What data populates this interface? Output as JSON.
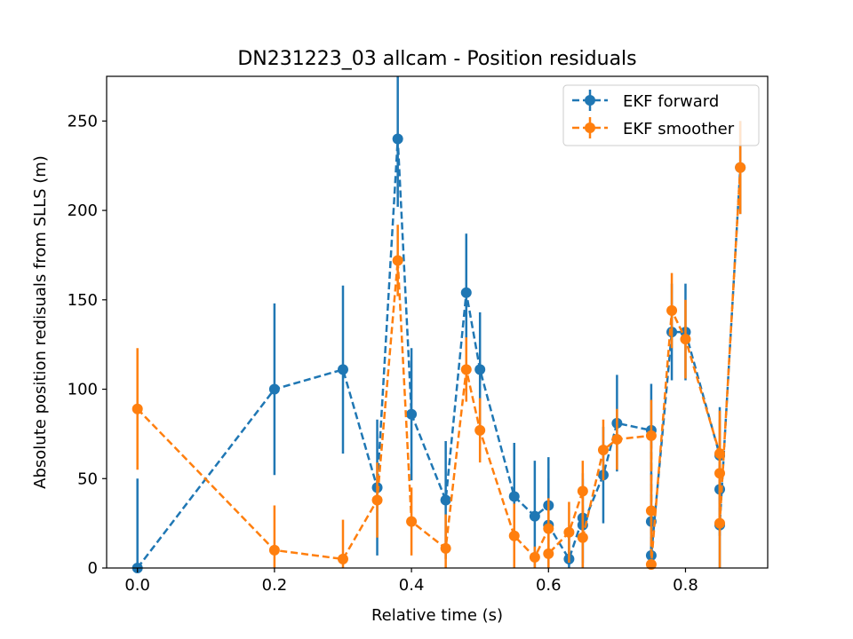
{
  "chart_data": {
    "type": "scatter",
    "title": "DN231223_03 allcam - Position residuals",
    "xlabel": "Relative time (s)",
    "ylabel": "Absolute position redisuals from SLLS (m)",
    "xlim": [
      -0.045,
      0.92
    ],
    "ylim": [
      0,
      275
    ],
    "xticks": [
      0.0,
      0.2,
      0.4,
      0.6,
      0.8
    ],
    "xtick_labels": [
      "0.0",
      "0.2",
      "0.4",
      "0.6",
      "0.8"
    ],
    "yticks": [
      0,
      50,
      100,
      150,
      200,
      250
    ],
    "ytick_labels": [
      "0",
      "50",
      "100",
      "150",
      "200",
      "250"
    ],
    "grid": false,
    "legend_position": "upper right",
    "style": "dashed line with circle markers and vertical error bars",
    "series": [
      {
        "name": "EKF forward",
        "color": "#1f77b4",
        "points": [
          {
            "x": 0.0,
            "y": 0,
            "err": 50
          },
          {
            "x": 0.2,
            "y": 100,
            "err": 48
          },
          {
            "x": 0.3,
            "y": 111,
            "err": 47
          },
          {
            "x": 0.35,
            "y": 45,
            "err": 38
          },
          {
            "x": 0.38,
            "y": 240,
            "err": 38
          },
          {
            "x": 0.4,
            "y": 86,
            "err": 37
          },
          {
            "x": 0.45,
            "y": 38,
            "err": 33
          },
          {
            "x": 0.48,
            "y": 154,
            "err": 33
          },
          {
            "x": 0.5,
            "y": 111,
            "err": 32
          },
          {
            "x": 0.55,
            "y": 40,
            "err": 30
          },
          {
            "x": 0.58,
            "y": 29,
            "err": 31
          },
          {
            "x": 0.6,
            "y": 35,
            "err": 27
          },
          {
            "x": 0.6,
            "y": 24,
            "err": 26
          },
          {
            "x": 0.63,
            "y": 5,
            "err": 16
          },
          {
            "x": 0.65,
            "y": 28,
            "err": 25
          },
          {
            "x": 0.65,
            "y": 24,
            "err": 26
          },
          {
            "x": 0.68,
            "y": 52,
            "err": 27
          },
          {
            "x": 0.7,
            "y": 81,
            "err": 27
          },
          {
            "x": 0.75,
            "y": 77,
            "err": 26
          },
          {
            "x": 0.75,
            "y": 26,
            "err": 26
          },
          {
            "x": 0.75,
            "y": 7,
            "err": 7
          },
          {
            "x": 0.78,
            "y": 132,
            "err": 27
          },
          {
            "x": 0.8,
            "y": 132,
            "err": 27
          },
          {
            "x": 0.85,
            "y": 63,
            "err": 27
          },
          {
            "x": 0.85,
            "y": 44,
            "err": 26
          },
          {
            "x": 0.85,
            "y": 24,
            "err": 24
          },
          {
            "x": 0.88,
            "y": 224,
            "err": 26
          }
        ]
      },
      {
        "name": "EKF smoother",
        "color": "#ff7f0e",
        "points": [
          {
            "x": 0.0,
            "y": 89,
            "err": 34
          },
          {
            "x": 0.2,
            "y": 10,
            "err": 25
          },
          {
            "x": 0.3,
            "y": 5,
            "err": 22
          },
          {
            "x": 0.35,
            "y": 38,
            "err": 21
          },
          {
            "x": 0.38,
            "y": 172,
            "err": 20
          },
          {
            "x": 0.4,
            "y": 26,
            "err": 19
          },
          {
            "x": 0.45,
            "y": 11,
            "err": 19
          },
          {
            "x": 0.48,
            "y": 111,
            "err": 18
          },
          {
            "x": 0.5,
            "y": 77,
            "err": 18
          },
          {
            "x": 0.55,
            "y": 18,
            "err": 18
          },
          {
            "x": 0.58,
            "y": 6,
            "err": 6
          },
          {
            "x": 0.6,
            "y": 22,
            "err": 17
          },
          {
            "x": 0.6,
            "y": 8,
            "err": 8
          },
          {
            "x": 0.63,
            "y": 20,
            "err": 17
          },
          {
            "x": 0.65,
            "y": 43,
            "err": 17
          },
          {
            "x": 0.65,
            "y": 17,
            "err": 17
          },
          {
            "x": 0.68,
            "y": 66,
            "err": 17
          },
          {
            "x": 0.7,
            "y": 72,
            "err": 17
          },
          {
            "x": 0.75,
            "y": 74,
            "err": 20
          },
          {
            "x": 0.75,
            "y": 32,
            "err": 20
          },
          {
            "x": 0.75,
            "y": 2,
            "err": 2
          },
          {
            "x": 0.78,
            "y": 144,
            "err": 21
          },
          {
            "x": 0.8,
            "y": 128,
            "err": 22
          },
          {
            "x": 0.85,
            "y": 64,
            "err": 24
          },
          {
            "x": 0.85,
            "y": 53,
            "err": 30
          },
          {
            "x": 0.85,
            "y": 25,
            "err": 25
          },
          {
            "x": 0.88,
            "y": 224,
            "err": 26
          }
        ]
      }
    ]
  }
}
